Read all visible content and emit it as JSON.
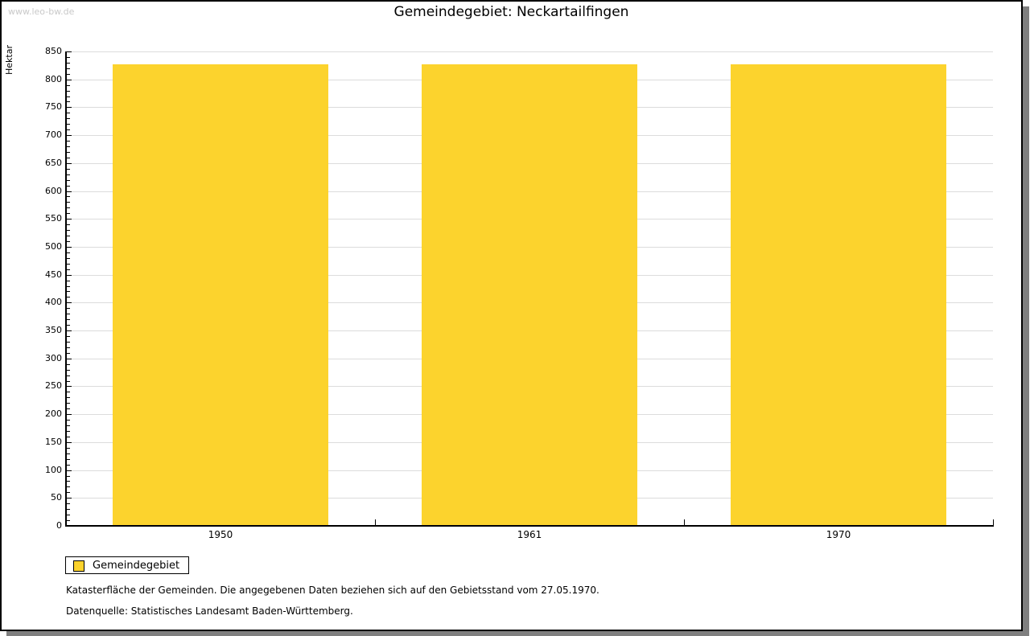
{
  "watermark": "www.leo-bw.de",
  "header": {
    "title": "Gemeindegebiet: Neckartailfingen"
  },
  "chart_data": {
    "type": "bar",
    "categories": [
      "1950",
      "1961",
      "1970"
    ],
    "series": [
      {
        "name": "Gemeindegebiet",
        "values": [
          827,
          827,
          827
        ]
      }
    ],
    "title": "Gemeindegebiet: Neckartailfingen",
    "xlabel": "",
    "ylabel": "Hektar",
    "ylim": [
      0,
      850
    ],
    "y_major_step": 50,
    "y_minor_step": 10,
    "grid": "horizontal-major",
    "legend_position": "bottom-left",
    "bar_color": "#FCD32D",
    "grid_color": "#DCDCDC",
    "axis_color": "#000000"
  },
  "legend": {
    "items": [
      {
        "label": "Gemeindegebiet",
        "color": "#FCD32D"
      }
    ]
  },
  "footer": {
    "line1": "Katasterfläche der Gemeinden. Die angegebenen Daten beziehen sich auf den Gebietsstand vom 27.05.1970.",
    "line2": "Datenquelle: Statistisches Landesamt Baden-Württemberg."
  }
}
